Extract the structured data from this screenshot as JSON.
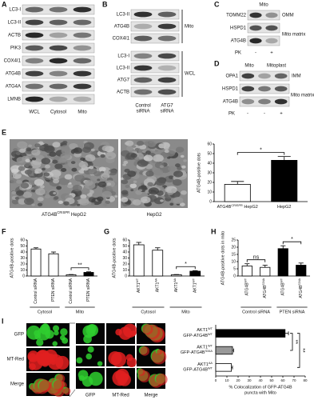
{
  "panels": {
    "A": {
      "letter": "A",
      "rows": [
        "LC3-I",
        "LC3-II",
        "ACTB",
        "PIK3",
        "COX4I1",
        "ATG4B",
        "ATG4A",
        "LMNB"
      ],
      "lanes": [
        "WCL",
        "Cytosol",
        "Mito"
      ]
    },
    "B": {
      "letter": "B",
      "mito_rows": [
        "LC3-II",
        "ATG4B",
        "COX4I1"
      ],
      "mito": "Mito",
      "wcl_rows": [
        "LC3-I",
        "LC3-II",
        "ATG7",
        "ACTB"
      ],
      "wcl": "WCL",
      "lanes": [
        [
          "Control",
          "siRNA"
        ],
        [
          "ATG7",
          "siRNA"
        ]
      ]
    },
    "C": {
      "letter": "C",
      "header": "Mito",
      "rows": [
        "TOMM22",
        "HSPD1",
        "ATG4B"
      ],
      "right": [
        "OMM",
        "Mito matrix"
      ],
      "pk": "PK",
      "pk_lanes": [
        "-",
        "+"
      ]
    },
    "D": {
      "letter": "D",
      "headers": [
        "Mito",
        "Mitoplast"
      ],
      "rows": [
        "OPA1",
        "HSPD1",
        "ATG4B"
      ],
      "right": [
        "IMM",
        "Mito matrix"
      ],
      "pk": "PK",
      "pk_lanes": [
        "-",
        "-",
        "+"
      ]
    },
    "E": {
      "letter": "E",
      "images": [
        [
          [
            "ATG4B",
            "CRISPR",
            " HepG2"
          ]
        ],
        [
          [
            "HepG2"
          ]
        ]
      ]
    },
    "F": {
      "letter": "F"
    },
    "G": {
      "letter": "G"
    },
    "H": {
      "letter": "H"
    },
    "I": {
      "letter": "I",
      "image_labels": [
        "GFP",
        "MT-Red",
        "Merge"
      ],
      "zoom_labels": [
        "GFP",
        "MT-Red",
        "Merge"
      ]
    }
  },
  "chart_data": [
    {
      "type": "bar",
      "ylabel": "ATG4B-positive dots",
      "categories": [
        [
          [
            "ATG4B",
            "CRISPR",
            " HepG2"
          ]
        ],
        [
          [
            "HepG2"
          ]
        ]
      ],
      "values": [
        18,
        43
      ],
      "errors": [
        3,
        4
      ],
      "colors": [
        "#ffffff",
        "#000000"
      ],
      "ylim": [
        0,
        60
      ],
      "yticks": [
        0,
        10,
        20,
        30,
        40,
        50,
        60
      ],
      "annotations": [
        "*"
      ]
    },
    {
      "type": "bar",
      "ylabel": "ATG4B-positive dots",
      "categories": [
        [
          [
            "Control siRNA"
          ]
        ],
        [
          [
            "PTEN siRNA"
          ]
        ],
        [
          [
            "Control siRNA"
          ]
        ],
        [
          [
            "PTEN siRNA"
          ]
        ]
      ],
      "values": [
        45,
        37,
        2,
        6
      ],
      "errors": [
        2,
        3,
        0.5,
        1
      ],
      "colors": [
        "#ffffff",
        "#ffffff",
        "#ffffff",
        "#000000"
      ],
      "groups": [
        "Cytosol",
        "Mito"
      ],
      "ylim": [
        0,
        60
      ],
      "yticks": [
        0,
        10,
        20,
        30,
        40,
        50,
        60
      ],
      "annotations": [
        "**"
      ]
    },
    {
      "type": "bar",
      "ylabel": "ATG4B-positive dots",
      "categories": [
        [
          [
            "AKT1",
            "WT"
          ]
        ],
        [
          [
            "AKT1",
            "AA"
          ]
        ],
        [
          [
            "AKT1",
            "AA"
          ]
        ],
        [
          [
            "AKT1",
            "WT"
          ]
        ]
      ],
      "values": [
        52,
        43,
        2,
        8
      ],
      "errors": [
        4,
        4,
        0.5,
        1
      ],
      "colors": [
        "#ffffff",
        "#ffffff",
        "#ffffff",
        "#000000"
      ],
      "groups": [
        "Cytosol",
        "Mito"
      ],
      "ylim": [
        0,
        60
      ],
      "yticks": [
        0,
        10,
        20,
        30,
        40,
        50,
        60
      ],
      "annotations": [
        "*"
      ]
    },
    {
      "type": "bar",
      "ylabel": "ATG4B-positive dots in mito",
      "categories": [
        [
          [
            "ATG4B",
            "WT"
          ]
        ],
        [
          [
            "ATG4B",
            "S34A"
          ]
        ],
        [
          [
            "ATG4B",
            "WT"
          ]
        ],
        [
          [
            "ATG4B",
            "S34A"
          ]
        ]
      ],
      "values": [
        7,
        6,
        19,
        7.5
      ],
      "errors": [
        1.5,
        1.5,
        2,
        1.5
      ],
      "colors": [
        "#ffffff",
        "#ffffff",
        "#000000",
        "#000000"
      ],
      "groups": [
        "Control siRNA",
        "PTEN siRNA"
      ],
      "ylim": [
        0,
        25
      ],
      "yticks": [
        0,
        5,
        10,
        15,
        20,
        25
      ],
      "annotations": [
        "ns",
        "*"
      ]
    },
    {
      "type": "hbar",
      "xlabel": [
        "% Colocalization of GFP-ATG4B",
        "puncta with Mito"
      ],
      "categories": [
        [
          [
            "AKT1",
            "WT"
          ],
          [
            "GFP-ATG4B",
            "WT"
          ]
        ],
        [
          [
            "AKT1",
            "WT"
          ],
          [
            "GFP-ATG4B",
            "S34A"
          ]
        ],
        [
          [
            "AKT1",
            "AA"
          ],
          [
            "GFP-ATG4B",
            "WT"
          ]
        ]
      ],
      "values": [
        62,
        15,
        14
      ],
      "errors": [
        3,
        1,
        1
      ],
      "colors": [
        "#000000",
        "#999999",
        "#ffffff"
      ],
      "xlim": [
        0,
        80
      ],
      "xticks": [
        0,
        10,
        20,
        30,
        40,
        50,
        60,
        70,
        80
      ],
      "annotations": [
        "**",
        "**"
      ]
    }
  ]
}
